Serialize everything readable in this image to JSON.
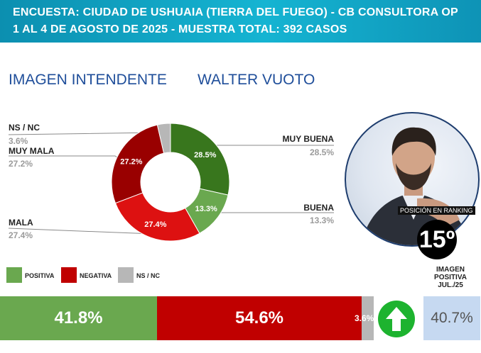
{
  "header": {
    "line1": "ENCUESTA: CIUDAD DE USHUAIA (TIERRA DEL FUEGO) - CB CONSULTORA OP",
    "line2": "1 AL 4 DE AGOSTO DE 2025 - MUESTRA TOTAL: 392 CASOS"
  },
  "titles": {
    "left": "IMAGEN INTENDENTE",
    "right": "WALTER VUOTO"
  },
  "chart_data": {
    "type": "pie",
    "title": "IMAGEN INTENDENTE",
    "subtitle": "WALTER VUOTO",
    "slices": [
      {
        "label": "MUY BUENA",
        "value": 28.5,
        "display": "28.5%",
        "color": "#38761d"
      },
      {
        "label": "BUENA",
        "value": 13.3,
        "display": "13.3%",
        "color": "#6aa84f"
      },
      {
        "label": "MALA",
        "value": 27.4,
        "display": "27.4%",
        "color": "#dd1111"
      },
      {
        "label": "MUY MALA",
        "value": 27.2,
        "display": "27.2%",
        "color": "#990000"
      },
      {
        "label": "NS / NC",
        "value": 3.6,
        "display": "3.6%",
        "color": "#b7b7b7"
      }
    ],
    "summary": [
      {
        "label": "POSITIVA",
        "value": 41.8,
        "display": "41.8%",
        "color": "#6aa84f"
      },
      {
        "label": "NEGATIVA",
        "value": 54.6,
        "display": "54.6%",
        "color": "#c00000"
      },
      {
        "label": "NS / NC",
        "value": 3.6,
        "display": "3.6%",
        "color": "#b7b7b7"
      }
    ]
  },
  "ranking": {
    "label": "POSICIÓN EN RANKING",
    "value": "15º"
  },
  "previous": {
    "title_line1": "IMAGEN",
    "title_line2": "POSITIVA",
    "title_line3": "JUL./25",
    "value": "40.7%"
  }
}
